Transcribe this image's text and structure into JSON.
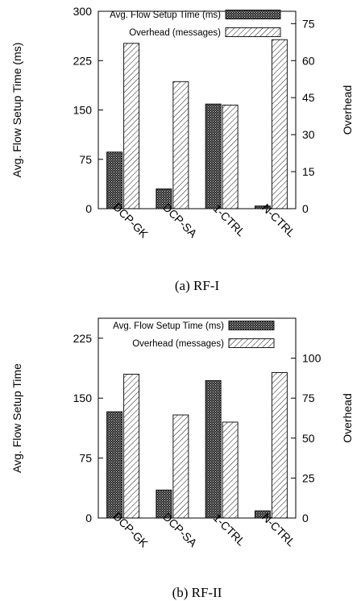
{
  "colors": {
    "primary_fill": "#2b2b2b",
    "overhead_fill": "#ffffff",
    "stroke": "#000000"
  },
  "chart_data": [
    {
      "type": "bar",
      "caption": "(a) RF-I",
      "categories": [
        "DCP-GK",
        "DCP-SA",
        "1-CTRL",
        "N-CTRL"
      ],
      "ylabel": "Avg. Flow Setup Time (ms)",
      "y2label": "Overhead",
      "ylim": [
        0,
        300
      ],
      "y2lim": [
        0,
        80
      ],
      "yticks": [
        0,
        75,
        150,
        225,
        300
      ],
      "y2ticks": [
        0,
        15,
        30,
        45,
        60,
        75
      ],
      "legend_position": "top-right",
      "grid": false,
      "series": [
        {
          "name": "Avg. Flow Setup Time (ms)",
          "axis": "left",
          "pattern": "dense",
          "values": [
            86,
            30,
            159,
            4
          ]
        },
        {
          "name": "Overhead (messages)",
          "axis": "right",
          "pattern": "hatch",
          "values": [
            67,
            51.5,
            42,
            68.5
          ]
        }
      ]
    },
    {
      "type": "bar",
      "caption": "(b) RF-II",
      "categories": [
        "DCP-GK",
        "DCP-SA",
        "1-CTRL",
        "N-CTRL"
      ],
      "ylabel": "Avg. Flow Setup Time",
      "y2label": "Overhead",
      "ylim": [
        0,
        250
      ],
      "y2lim": [
        0,
        125
      ],
      "yticks": [
        0,
        75,
        150,
        225
      ],
      "y2ticks": [
        0,
        25,
        50,
        75,
        100
      ],
      "legend_position": "top-right",
      "grid": false,
      "series": [
        {
          "name": "Avg. Flow Setup Time (ms)",
          "axis": "left",
          "pattern": "dense",
          "values": [
            133,
            35,
            172,
            9
          ]
        },
        {
          "name": "Overhead (messages)",
          "axis": "right",
          "pattern": "hatch",
          "values": [
            90,
            64.5,
            60,
            91
          ]
        }
      ]
    }
  ]
}
